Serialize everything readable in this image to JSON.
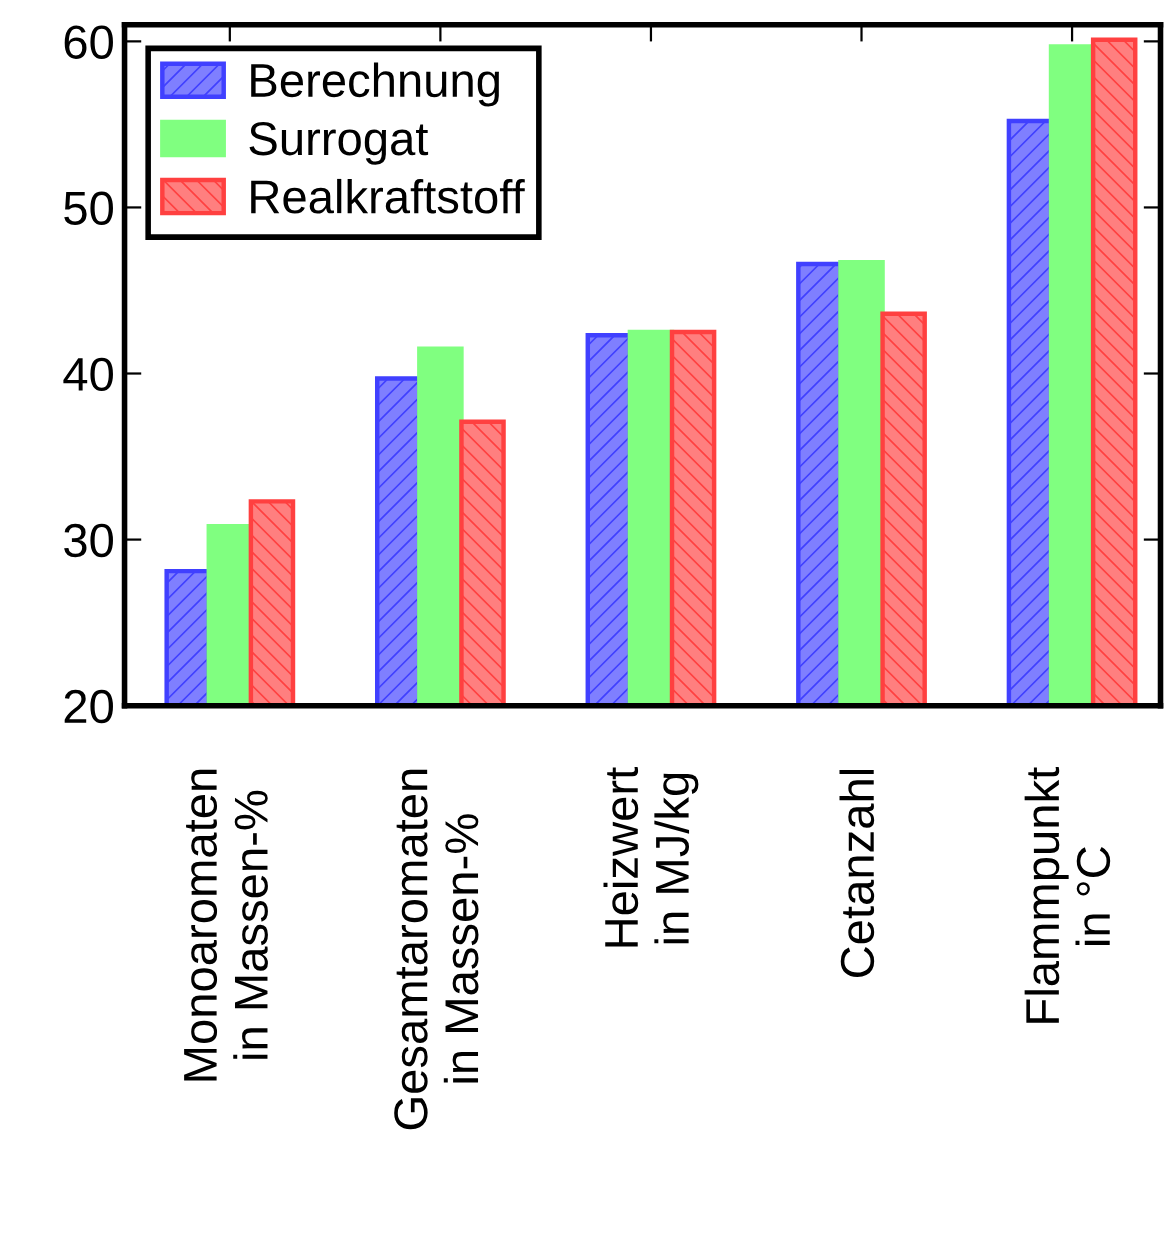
{
  "chart_data": {
    "type": "bar",
    "categories": [
      "Monoaromaten\nin Massen-%",
      "Gesamtaromaten\nin Massen-%",
      "Heizwert\nin MJ/kg",
      "Cetanzahl",
      "Flammpunkt\nin °C"
    ],
    "series": [
      {
        "name": "Berechnung",
        "color": "#4040ff",
        "values": [
          28.1,
          39.7,
          42.3,
          46.6,
          55.2
        ]
      },
      {
        "name": "Surrogat",
        "color": "#80ff80",
        "values": [
          30.8,
          41.5,
          42.5,
          46.7,
          59.7
        ]
      },
      {
        "name": "Realkraftstoff",
        "color": "#ff4040",
        "values": [
          32.3,
          37.1,
          42.5,
          43.6,
          60.1
        ]
      }
    ],
    "ylim": [
      20,
      61
    ],
    "yticks": [
      20,
      30,
      40,
      50,
      60
    ],
    "grid": false,
    "legend": "top left"
  }
}
